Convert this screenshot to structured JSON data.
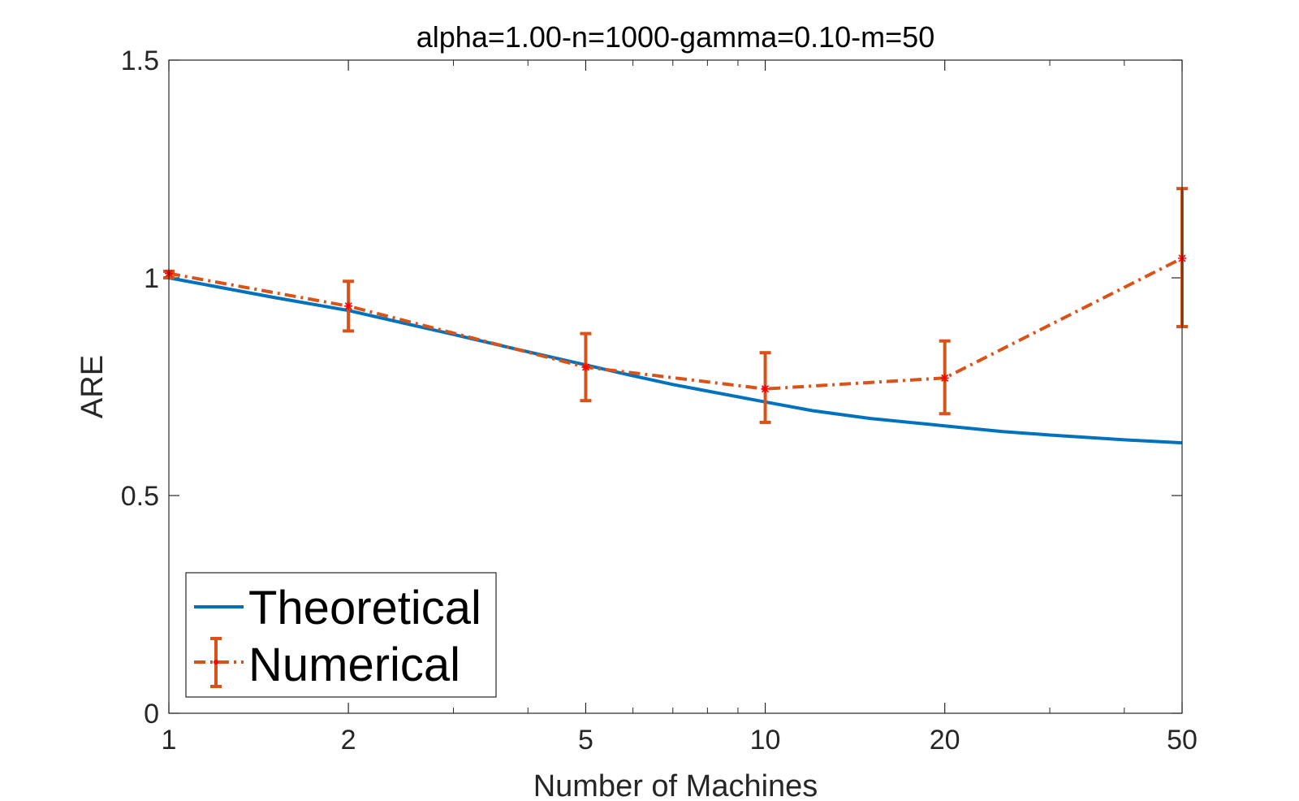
{
  "chart_data": {
    "type": "line",
    "title": "alpha=1.00-n=1000-gamma=0.10-m=50",
    "xlabel": "Number of Machines",
    "ylabel": "ARE",
    "xscale": "log",
    "xlim": [
      1,
      50
    ],
    "ylim": [
      0,
      1.5
    ],
    "xticks": [
      1,
      2,
      5,
      10,
      20,
      50
    ],
    "xtick_labels": [
      "1",
      "2",
      "5",
      "10",
      "20",
      "50"
    ],
    "yticks": [
      0,
      0.5,
      1,
      1.5
    ],
    "ytick_labels": [
      "0",
      "0.5",
      "1",
      "1.5"
    ],
    "grid": false,
    "legend_position": "bottom-left",
    "series": [
      {
        "name": "Theoretical",
        "style": "solid",
        "color": "#0072BD",
        "x": [
          1,
          1.5,
          2,
          3,
          4,
          5,
          6,
          7,
          8,
          10,
          12,
          15,
          20,
          25,
          30,
          40,
          50
        ],
        "y": [
          1.0,
          0.955,
          0.925,
          0.87,
          0.83,
          0.8,
          0.775,
          0.755,
          0.74,
          0.715,
          0.695,
          0.677,
          0.66,
          0.647,
          0.639,
          0.628,
          0.621
        ]
      },
      {
        "name": "Numerical",
        "style": "dash-dot",
        "color": "#D95319",
        "marker_color": "#FF0000",
        "x": [
          1,
          2,
          5,
          10,
          20,
          50
        ],
        "y": [
          1.01,
          0.935,
          0.795,
          0.745,
          0.77,
          1.045
        ],
        "err_low": [
          1.0,
          0.878,
          0.718,
          0.668,
          0.688,
          0.888
        ],
        "err_high": [
          1.015,
          0.992,
          0.872,
          0.828,
          0.855,
          1.205
        ]
      }
    ]
  }
}
